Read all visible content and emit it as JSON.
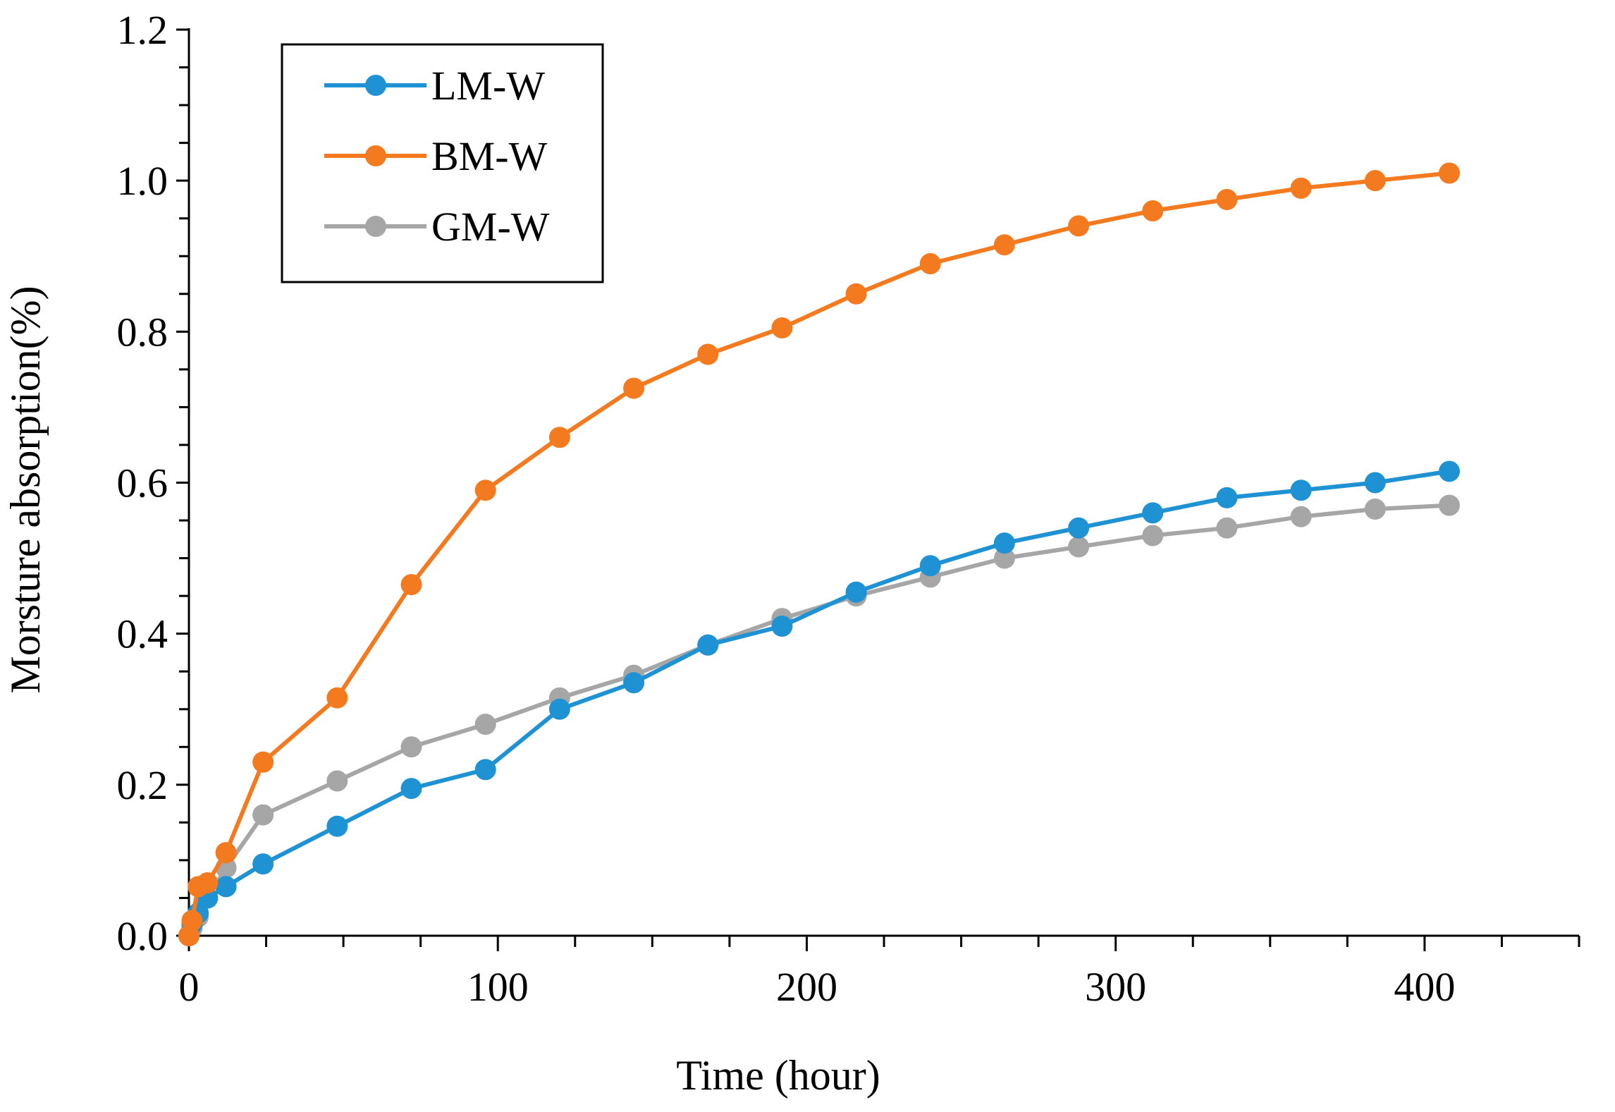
{
  "chart_data": {
    "type": "line",
    "title": "",
    "xlabel": "Time  (hour)",
    "ylabel": "Morsture absorption(%)",
    "xlim": [
      0,
      450
    ],
    "ylim": [
      0,
      1.2
    ],
    "xticks": [
      0,
      100,
      200,
      300,
      400
    ],
    "xtick_labels": [
      "0",
      "100",
      "200",
      "300",
      "400"
    ],
    "yticks": [
      0,
      0.2,
      0.4,
      0.6,
      0.8,
      1.0,
      1.2
    ],
    "ytick_labels": [
      "0.0",
      "0.2",
      "0.4",
      "0.6",
      "0.8",
      "1.0",
      "1.2"
    ],
    "x_minor_step": 25,
    "y_minor_step": 0.05,
    "grid": false,
    "legend_position": "top-left",
    "x": [
      0,
      1,
      3,
      6,
      12,
      24,
      48,
      72,
      96,
      120,
      144,
      168,
      192,
      216,
      240,
      264,
      288,
      312,
      336,
      360,
      384,
      408
    ],
    "series": [
      {
        "name": "LM-W",
        "color": "#1f92d4",
        "values": [
          0.0,
          0.015,
          0.03,
          0.05,
          0.065,
          0.095,
          0.145,
          0.195,
          0.22,
          0.3,
          0.335,
          0.385,
          0.41,
          0.455,
          0.49,
          0.52,
          0.54,
          0.56,
          0.58,
          0.59,
          0.6,
          0.615
        ]
      },
      {
        "name": "BM-W",
        "color": "#f47a20",
        "values": [
          0.0,
          0.02,
          0.065,
          0.07,
          0.11,
          0.23,
          0.315,
          0.465,
          0.59,
          0.66,
          0.725,
          0.77,
          0.805,
          0.85,
          0.89,
          0.915,
          0.94,
          0.96,
          0.975,
          0.99,
          1.0,
          1.01
        ]
      },
      {
        "name": "GM-W",
        "color": "#a6a6a6",
        "values": [
          0.0,
          0.01,
          0.025,
          0.05,
          0.09,
          0.16,
          0.205,
          0.25,
          0.28,
          0.315,
          0.345,
          0.385,
          0.42,
          0.45,
          0.475,
          0.5,
          0.515,
          0.53,
          0.54,
          0.555,
          0.565,
          0.57
        ]
      }
    ]
  }
}
